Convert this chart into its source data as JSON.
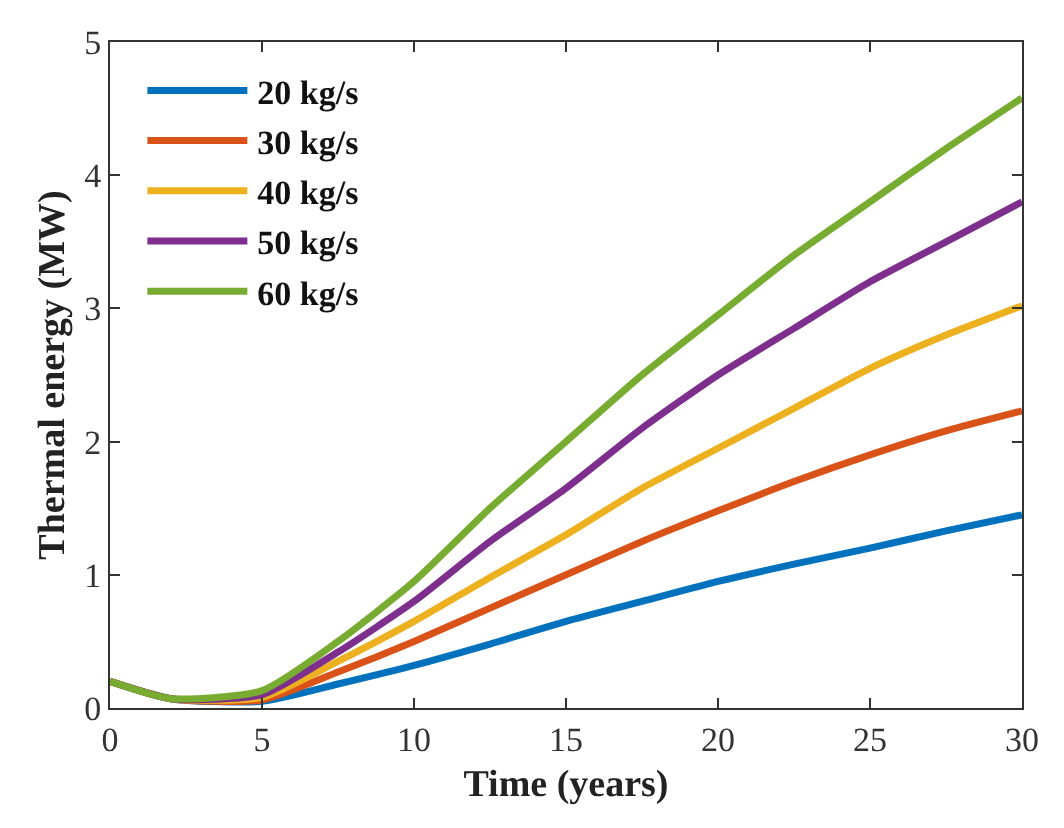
{
  "chart_data": {
    "type": "line",
    "xlabel": "Time (years)",
    "ylabel": "Thermal energy (MW)",
    "x": [
      0,
      2,
      5,
      7.5,
      10,
      12.5,
      15,
      17.5,
      20,
      22.5,
      25,
      27.5,
      30
    ],
    "xlim": [
      0,
      30
    ],
    "xticks": [
      0,
      5,
      10,
      15,
      20,
      25,
      30
    ],
    "ylim": [
      0,
      5
    ],
    "yticks": [
      0,
      1,
      2,
      3,
      4,
      5
    ],
    "grid": false,
    "legend": "top left",
    "marker": "none",
    "line_style": "solid",
    "series": [
      {
        "name": "20 kg/s",
        "color": "#0072bd",
        "values": [
          0.2,
          0.07,
          0.05,
          0.18,
          0.32,
          0.48,
          0.65,
          0.8,
          0.95,
          1.08,
          1.2,
          1.33,
          1.45
        ]
      },
      {
        "name": "30 kg/s",
        "color": "#d95319",
        "values": [
          0.2,
          0.07,
          0.06,
          0.27,
          0.5,
          0.75,
          1.0,
          1.25,
          1.48,
          1.7,
          1.9,
          2.08,
          2.23
        ]
      },
      {
        "name": "40 kg/s",
        "color": "#edb120",
        "values": [
          0.2,
          0.07,
          0.08,
          0.35,
          0.65,
          0.98,
          1.3,
          1.65,
          1.95,
          2.25,
          2.55,
          2.8,
          3.02
        ]
      },
      {
        "name": "50 kg/s",
        "color": "#7e2f8e",
        "values": [
          0.2,
          0.07,
          0.1,
          0.42,
          0.8,
          1.25,
          1.65,
          2.1,
          2.5,
          2.85,
          3.2,
          3.5,
          3.8
        ]
      },
      {
        "name": "60 kg/s",
        "color": "#77ac30",
        "values": [
          0.2,
          0.07,
          0.13,
          0.5,
          0.95,
          1.5,
          2.0,
          2.5,
          2.95,
          3.4,
          3.8,
          4.2,
          4.58
        ]
      }
    ]
  }
}
